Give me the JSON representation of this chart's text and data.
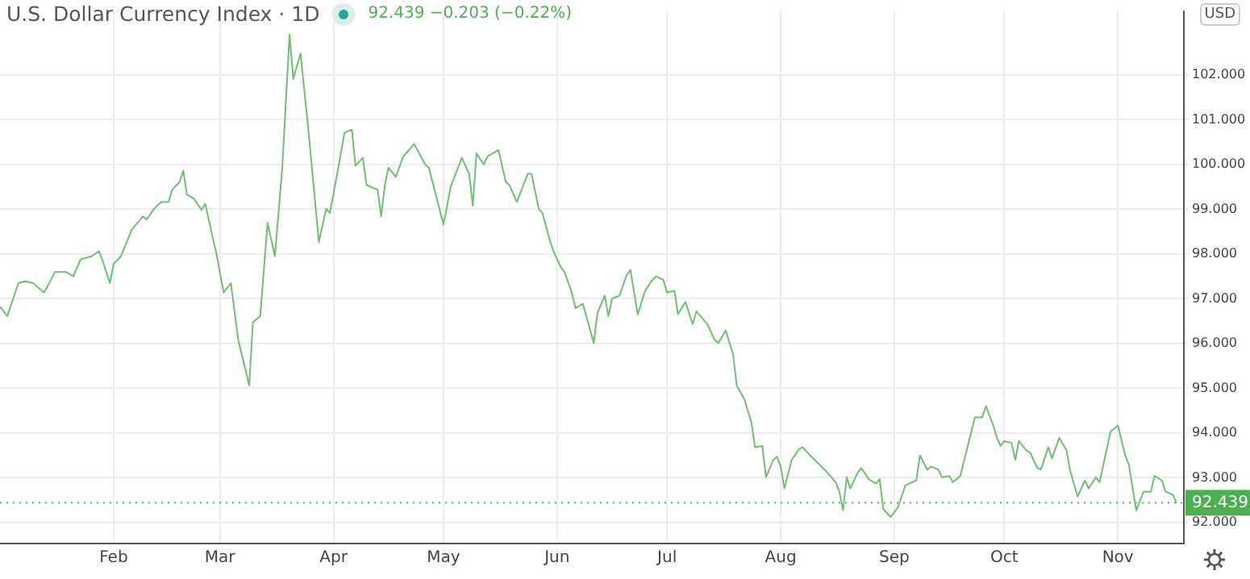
{
  "chart_data": {
    "type": "line",
    "title": "U.S. Dollar Currency Index · 1D",
    "subtitle": "92.439 −0.203 (−0.22%)",
    "annotations": [
      "USD"
    ],
    "x": [
      "--01-01",
      "--01-03",
      "--01-06",
      "--01-08",
      "--01-10",
      "--01-13",
      "--01-14",
      "--01-16",
      "--01-19",
      "--01-21",
      "--01-23",
      "--01-26",
      "--01-28",
      "--01-29",
      "--01-31",
      "--02-01",
      "--02-03",
      "--02-06",
      "--02-09",
      "--02-10",
      "--02-12",
      "--02-14",
      "--02-16",
      "--02-17",
      "--02-19",
      "--02-20",
      "--02-21",
      "--02-23",
      "--02-25",
      "--02-26",
      "--02-28",
      "--02-29",
      "--03-02",
      "--03-04",
      "--03-06",
      "--03-09",
      "--03-10",
      "--03-12",
      "--03-14",
      "--03-16",
      "--03-18",
      "--03-20",
      "--03-21",
      "--03-23",
      "--03-25",
      "--03-28",
      "--03-30",
      "--03-31",
      "--04-02",
      "--04-04",
      "--04-06",
      "--04-07",
      "--04-09",
      "--04-10",
      "--04-12",
      "--04-13",
      "--04-14",
      "--04-15",
      "--04-16",
      "--04-18",
      "--04-20",
      "--04-22",
      "--04-23",
      "--04-26",
      "--04-27",
      "--05-01",
      "--05-03",
      "--05-06",
      "--05-08",
      "--05-09",
      "--05-10",
      "--05-12",
      "--05-13",
      "--05-16",
      "--05-18",
      "--05-19",
      "--05-21",
      "--05-24",
      "--05-25",
      "--05-27",
      "--05-28",
      "--05-30",
      "--05-31",
      "--06-02",
      "--06-03",
      "--06-05",
      "--06-06",
      "--06-08",
      "--06-11",
      "--06-12",
      "--06-14",
      "--06-15",
      "--06-16",
      "--06-18",
      "--06-20",
      "--06-21",
      "--06-23",
      "--06-25",
      "--06-27",
      "--06-28",
      "--06-30",
      "--07-01",
      "--07-03",
      "--07-04",
      "--07-06",
      "--07-08",
      "--07-09",
      "--07-12",
      "--07-14",
      "--07-15",
      "--07-17",
      "--07-19",
      "--07-20",
      "--07-22",
      "--07-24",
      "--07-25",
      "--07-27",
      "--07-28",
      "--07-30",
      "--07-31",
      "--08-01",
      "--08-02",
      "--08-04",
      "--08-06",
      "--08-07",
      "--08-09",
      "--08-13",
      "--08-16",
      "--08-17",
      "--08-18",
      "--08-19",
      "--08-20",
      "--08-22",
      "--08-23",
      "--08-25",
      "--08-27",
      "--08-28",
      "--08-29",
      "--08-31",
      "--09-02",
      "--09-03",
      "--09-04",
      "--09-07",
      "--09-08",
      "--09-10",
      "--09-11",
      "--09-13",
      "--09-14",
      "--09-16",
      "--09-17",
      "--09-19",
      "--09-23",
      "--09-25",
      "--09-26",
      "--09-28",
      "--09-29",
      "--09-30",
      "--10-01",
      "--10-03",
      "--10-04",
      "--10-05",
      "--10-07",
      "--10-08",
      "--10-10",
      "--10-11",
      "--10-13",
      "--10-14",
      "--10-16",
      "--10-18",
      "--10-19",
      "--10-21",
      "--10-23",
      "--10-24",
      "--10-26",
      "--10-27",
      "--10-30",
      "--11-01",
      "--11-03",
      "--11-04",
      "--11-06",
      "--11-08",
      "--11-10",
      "--11-11",
      "--11-13",
      "--11-14",
      "--11-16",
      "--11-17"
    ],
    "series": [
      {
        "color": "#6fbf73",
        "values": [
          96.82,
          96.61,
          97.35,
          97.39,
          97.35,
          97.14,
          97.28,
          97.6,
          97.6,
          97.5,
          97.88,
          97.95,
          98.06,
          97.85,
          97.35,
          97.78,
          97.95,
          98.55,
          98.84,
          98.77,
          99.01,
          99.16,
          99.16,
          99.44,
          99.61,
          99.86,
          99.33,
          99.23,
          98.98,
          99.12,
          98.38,
          98.03,
          97.14,
          97.35,
          96.08,
          95.06,
          96.47,
          96.61,
          98.7,
          97.95,
          99.9,
          102.9,
          101.91,
          102.48,
          100.89,
          98.27,
          99.01,
          98.91,
          99.79,
          100.71,
          100.78,
          99.97,
          100.15,
          99.54,
          99.47,
          99.44,
          98.84,
          99.54,
          99.93,
          99.72,
          100.18,
          100.36,
          100.46,
          100.0,
          99.93,
          98.66,
          99.51,
          100.15,
          99.79,
          99.08,
          100.25,
          100.0,
          100.18,
          100.32,
          99.61,
          99.54,
          99.16,
          99.79,
          99.79,
          99.01,
          98.91,
          98.31,
          98.06,
          97.71,
          97.6,
          97.14,
          96.79,
          96.89,
          96.01,
          96.68,
          97.07,
          96.61,
          97.0,
          97.07,
          97.53,
          97.64,
          96.65,
          97.18,
          97.42,
          97.5,
          97.42,
          97.14,
          97.18,
          96.65,
          96.93,
          96.43,
          96.72,
          96.43,
          96.08,
          96.01,
          96.29,
          95.76,
          95.06,
          94.77,
          94.24,
          93.68,
          93.71,
          93.01,
          93.4,
          93.47,
          93.25,
          92.76,
          93.4,
          93.64,
          93.68,
          93.5,
          93.18,
          92.9,
          92.69,
          92.27,
          93.01,
          92.76,
          93.11,
          93.22,
          92.97,
          92.87,
          92.97,
          92.3,
          92.12,
          92.34,
          92.58,
          92.83,
          92.94,
          93.5,
          93.18,
          93.25,
          93.18,
          93.01,
          93.04,
          92.9,
          93.04,
          94.35,
          94.35,
          94.6,
          94.17,
          93.89,
          93.71,
          93.82,
          93.78,
          93.4,
          93.82,
          93.61,
          93.57,
          93.22,
          93.18,
          93.68,
          93.43,
          93.89,
          93.61,
          93.15,
          92.58,
          92.94,
          92.76,
          93.01,
          92.9,
          94.03,
          94.17,
          93.5,
          93.29,
          92.27,
          92.69,
          92.69,
          93.04,
          92.94,
          92.69,
          92.62,
          92.439
        ]
      }
    ],
    "xlim": [
      "--01-01",
      "--11-19"
    ],
    "xticks": [
      {
        "value": "--02-01",
        "label": "Feb"
      },
      {
        "value": "--03-01",
        "label": "Mar"
      },
      {
        "value": "--04-01",
        "label": "Apr"
      },
      {
        "value": "--05-01",
        "label": "May"
      },
      {
        "value": "--06-01",
        "label": "Jun"
      },
      {
        "value": "--07-01",
        "label": "Jul"
      },
      {
        "value": "--08-01",
        "label": "Aug"
      },
      {
        "value": "--09-01",
        "label": "Sep"
      },
      {
        "value": "--10-01",
        "label": "Oct"
      },
      {
        "value": "--11-01",
        "label": "Nov"
      }
    ],
    "ylim": [
      91.53,
      103.43
    ],
    "yticks": [
      {
        "value": 92,
        "label": "92.000"
      },
      {
        "value": 93,
        "label": "93.000"
      },
      {
        "value": 94,
        "label": "94.000"
      },
      {
        "value": 95,
        "label": "95.000"
      },
      {
        "value": 96,
        "label": "96.000"
      },
      {
        "value": 97,
        "label": "97.000"
      },
      {
        "value": 98,
        "label": "98.000"
      },
      {
        "value": 99,
        "label": "99.000"
      },
      {
        "value": 100,
        "label": "100.000"
      },
      {
        "value": 101,
        "label": "101.000"
      },
      {
        "value": 102,
        "label": "102.000"
      }
    ],
    "ref_lines": [
      {
        "axis": "y",
        "value": 92.439,
        "label": "92.439",
        "color": "#4caf50",
        "line_style": "dotted"
      }
    ],
    "grid": true,
    "legend": false,
    "marker": "none",
    "line_style": "solid"
  }
}
